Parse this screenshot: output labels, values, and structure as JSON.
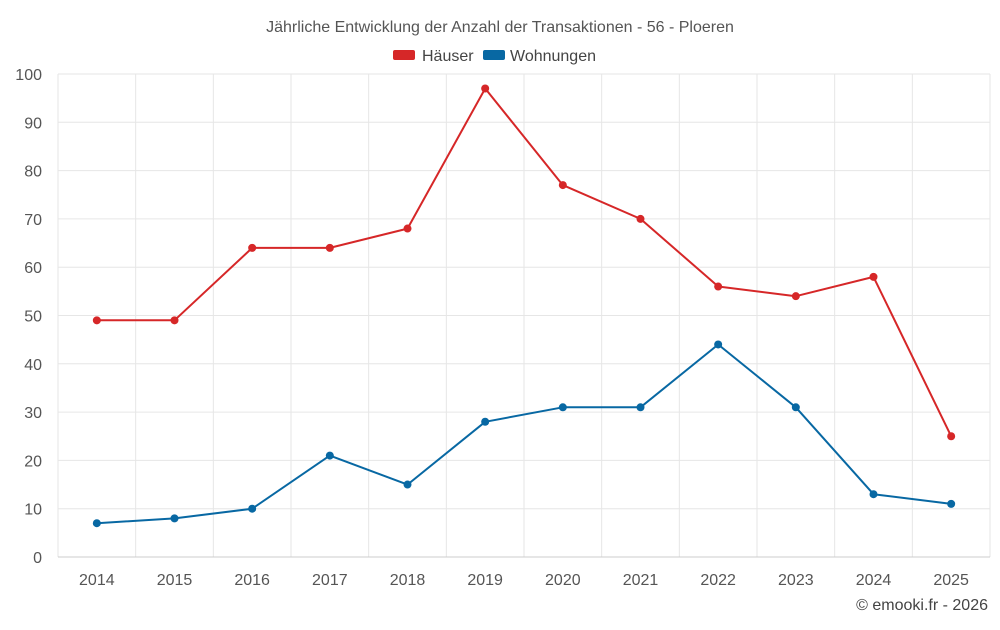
{
  "chart_data": {
    "type": "line",
    "title": "Jährliche Entwicklung der Anzahl der Transaktionen - 56 - Ploeren",
    "categories": [
      "2014",
      "2015",
      "2016",
      "2017",
      "2018",
      "2019",
      "2020",
      "2021",
      "2022",
      "2023",
      "2024",
      "2025"
    ],
    "series": [
      {
        "name": "Häuser",
        "color": "#d62728",
        "values": [
          49,
          49,
          64,
          64,
          68,
          97,
          77,
          70,
          56,
          54,
          58,
          25
        ]
      },
      {
        "name": "Wohnungen",
        "color": "#0868a3",
        "values": [
          7,
          8,
          10,
          21,
          15,
          28,
          31,
          31,
          44,
          31,
          13,
          11
        ]
      }
    ],
    "ylim": [
      0,
      100
    ],
    "yticks": [
      "0",
      "10",
      "20",
      "30",
      "40",
      "50",
      "60",
      "70",
      "80",
      "90",
      "100"
    ],
    "xlabel": "",
    "ylabel": "",
    "grid": true,
    "legend_position": "top-center"
  },
  "credit": "© emooki.fr - 2026"
}
